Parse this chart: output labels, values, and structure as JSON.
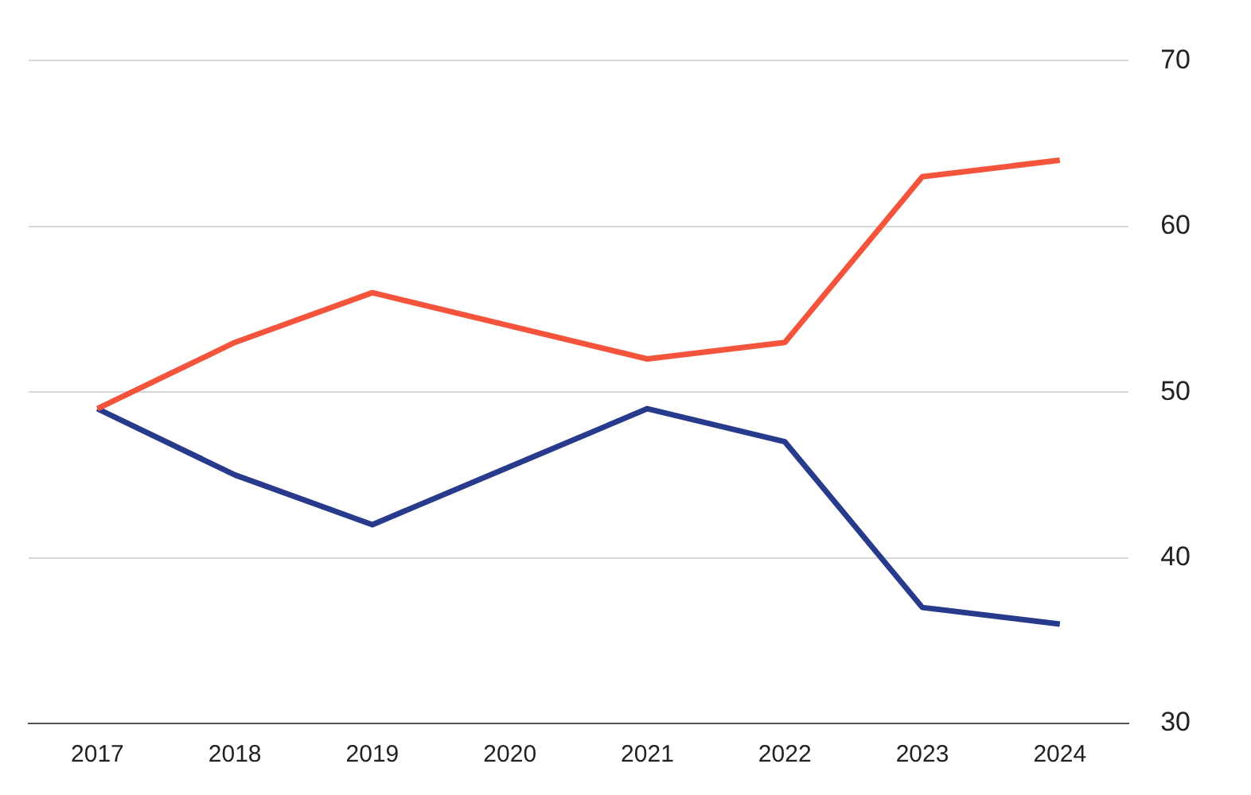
{
  "chart_data": {
    "type": "line",
    "categories": [
      "2017",
      "2018",
      "2019",
      "2020",
      "2021",
      "2022",
      "2023",
      "2024"
    ],
    "series": [
      {
        "color": "#f4533c",
        "values": [
          49,
          53,
          56,
          54,
          52,
          53,
          63,
          64
        ]
      },
      {
        "color": "#283a8c",
        "values": [
          49,
          45,
          42,
          45.5,
          49,
          47,
          37,
          36
        ]
      }
    ],
    "ylim": [
      30,
      70
    ],
    "yticks": [
      30,
      40,
      50,
      60,
      70
    ],
    "grid": "y",
    "legend": false,
    "marker": "none",
    "line_style": "solid"
  }
}
